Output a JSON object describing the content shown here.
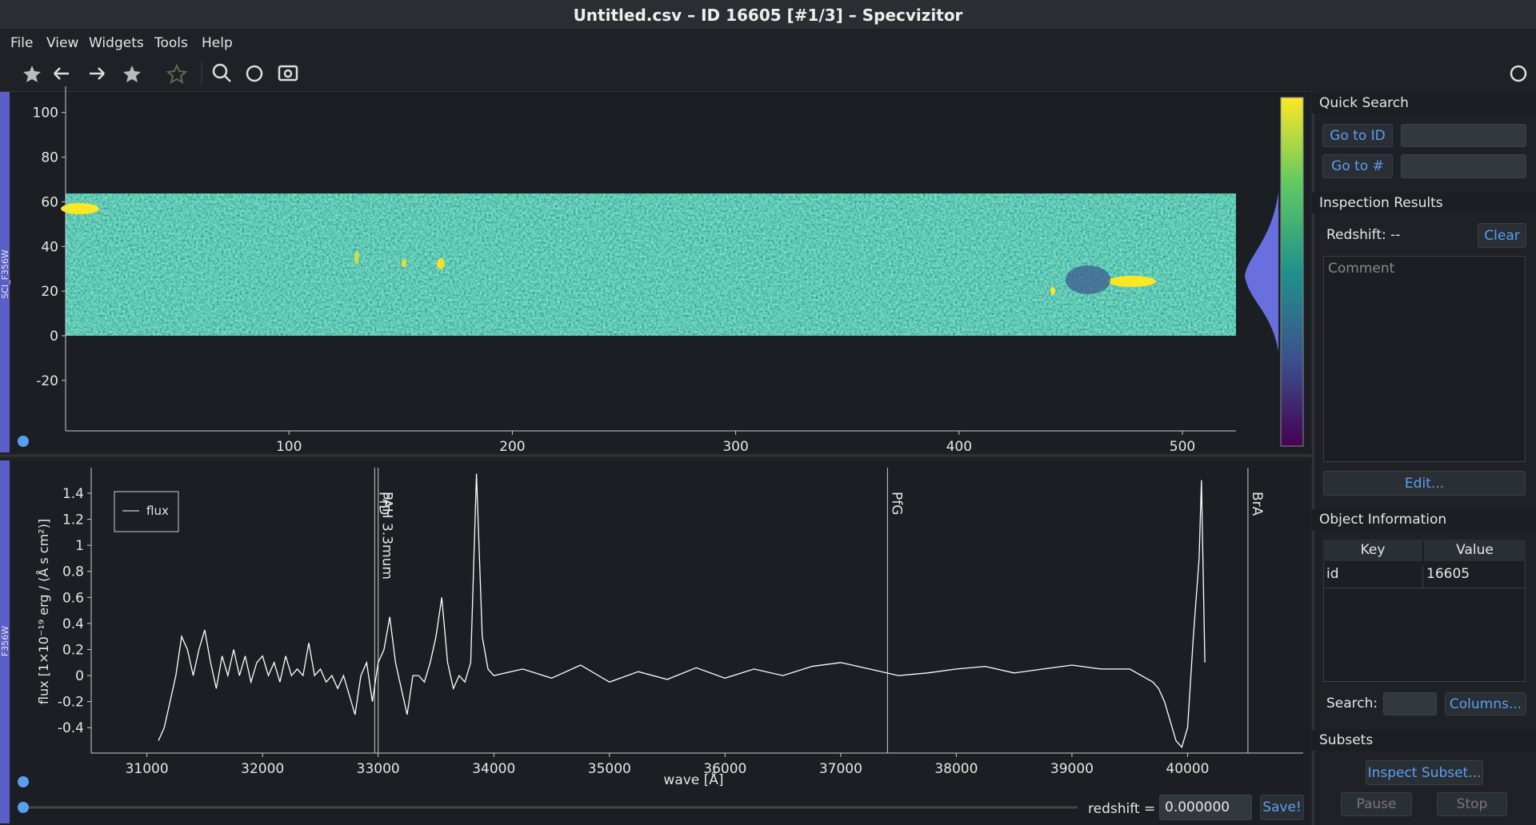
{
  "window": {
    "title": "Untitled.csv – ID 16605 [#1/3] – Specvizitor"
  },
  "menu": [
    "File",
    "View",
    "Widgets",
    "Tools",
    "Help"
  ],
  "chart_data": [
    {
      "type": "image",
      "side_label": "SCI_F356W",
      "xlim": [
        0,
        524
      ],
      "ylim": [
        -42.6,
        111.7
      ],
      "xticks": [
        100,
        200,
        300,
        400,
        500
      ],
      "yticks": [
        100,
        80,
        60,
        40,
        20,
        0,
        -20
      ]
    },
    {
      "type": "line",
      "side_label": "F356W",
      "x_label": "wave [Å]",
      "y_label": "flux [1×10⁻¹⁹ erg / (Å s cm²)]",
      "xlim": [
        30518,
        41000
      ],
      "ylim": [
        -0.595,
        1.596
      ],
      "xticks": [
        31000,
        32000,
        33000,
        34000,
        35000,
        36000,
        37000,
        38000,
        39000,
        40000
      ],
      "yticks": [
        1.4,
        1.2,
        1,
        0.8,
        0.6,
        0.4,
        0.2,
        0,
        -0.2,
        -0.4
      ],
      "x": [
        31100,
        31150,
        31200,
        31250,
        31300,
        31350,
        31400,
        31450,
        31500,
        31550,
        31600,
        31650,
        31700,
        31750,
        31800,
        31850,
        31900,
        31950,
        32000,
        32050,
        32100,
        32150,
        32200,
        32250,
        32300,
        32350,
        32400,
        32450,
        32500,
        32550,
        32600,
        32650,
        32700,
        32750,
        32800,
        32850,
        32900,
        32950,
        33000,
        33050,
        33100,
        33150,
        33200,
        33250,
        33300,
        33350,
        33400,
        33450,
        33500,
        33550,
        33600,
        33650,
        33700,
        33750,
        33800,
        33850,
        33900,
        33950,
        34000,
        34250,
        34500,
        34750,
        35000,
        35250,
        35500,
        35750,
        36000,
        36250,
        36500,
        36750,
        37000,
        37250,
        37500,
        37750,
        38000,
        38250,
        38500,
        38750,
        39000,
        39250,
        39500,
        39600,
        39700,
        39750,
        39800,
        39850,
        39900,
        39950,
        40000,
        40050,
        40100,
        40120,
        40150
      ],
      "series": [
        {
          "name": "flux",
          "color": "#ffffff",
          "values": [
            -0.5,
            -0.4,
            -0.2,
            0,
            0.3,
            0.2,
            0,
            0.2,
            0.35,
            0.1,
            -0.1,
            0.15,
            0,
            0.2,
            0,
            0.15,
            -0.05,
            0.1,
            0.15,
            0,
            0.1,
            -0.05,
            0.15,
            0,
            0.05,
            0,
            0.25,
            0,
            0.05,
            -0.05,
            0,
            -0.1,
            0,
            -0.15,
            -0.3,
            0,
            0.1,
            -0.2,
            0.1,
            0.2,
            0.45,
            0.1,
            -0.1,
            -0.3,
            0,
            0,
            -0.05,
            0.1,
            0.3,
            0.6,
            0.1,
            -0.1,
            0,
            -0.05,
            0.1,
            1.55,
            0.3,
            0.05,
            0,
            0.05,
            -0.02,
            0.08,
            -0.05,
            0.03,
            -0.03,
            0.06,
            -0.02,
            0.05,
            0,
            0.07,
            0.1,
            0.05,
            0,
            0.02,
            0.05,
            0.07,
            0.02,
            0.05,
            0.08,
            0.05,
            0.05,
            0,
            -0.05,
            -0.1,
            -0.2,
            -0.35,
            -0.5,
            -0.55,
            -0.4,
            0.3,
            0.9,
            1.5,
            0.1
          ]
        }
      ],
      "lines": [
        {
          "value": 32970,
          "label": "PfD"
        },
        {
          "value": 33000,
          "label": "PAH 3.3mum"
        },
        {
          "value": 37405,
          "label": "PfG"
        },
        {
          "value": 40522,
          "label": "BrA"
        }
      ]
    }
  ],
  "redshift_bar": {
    "label": "redshift =",
    "value": "0.000000",
    "button": "Save!"
  },
  "quick_search": {
    "title": "Quick Search",
    "buttons": [
      "Go to ID",
      "Go to #"
    ]
  },
  "inspection": {
    "title": "Inspection Results",
    "redshift": "Redshift: --",
    "clear": "Clear",
    "comment": "Comment",
    "edit": "Edit..."
  },
  "object_info": {
    "title": "Object Information",
    "columns": [
      "Key",
      "Value"
    ],
    "rows": [
      [
        "id",
        "16605"
      ]
    ],
    "search": "Search:",
    "columns_button": "Columns..."
  },
  "subsets": {
    "title": "Subsets",
    "buttons": [
      "Inspect Subset...",
      "Pause",
      "Stop"
    ]
  }
}
